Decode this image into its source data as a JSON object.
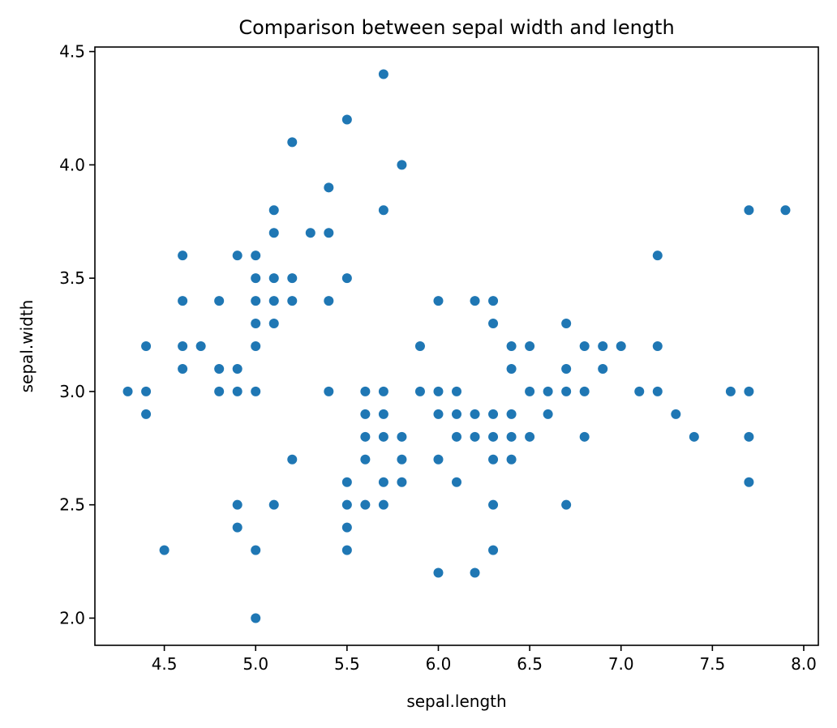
{
  "chart_data": {
    "type": "scatter",
    "title": "Comparison between sepal width and length",
    "xlabel": "sepal.length",
    "ylabel": "sepal.width",
    "xlim": [
      4.12,
      8.08
    ],
    "ylim": [
      1.88,
      4.52
    ],
    "xticks": [
      4.5,
      5.0,
      5.5,
      6.0,
      6.5,
      7.0,
      7.5,
      8.0
    ],
    "xtick_labels": [
      "4.5",
      "5.0",
      "5.5",
      "6.0",
      "6.5",
      "7.0",
      "7.5",
      "8.0"
    ],
    "yticks": [
      2.0,
      2.5,
      3.0,
      3.5,
      4.0,
      4.5
    ],
    "ytick_labels": [
      "2.0",
      "2.5",
      "3.0",
      "3.5",
      "4.0",
      "4.5"
    ],
    "grid": false,
    "marker_color": "#1f77b4",
    "points": [
      [
        4.3,
        3.0
      ],
      [
        4.4,
        3.2
      ],
      [
        4.4,
        3.0
      ],
      [
        4.4,
        2.9
      ],
      [
        4.5,
        2.3
      ],
      [
        4.6,
        3.6
      ],
      [
        4.6,
        3.4
      ],
      [
        4.6,
        3.2
      ],
      [
        4.6,
        3.1
      ],
      [
        4.7,
        3.2
      ],
      [
        4.8,
        3.4
      ],
      [
        4.8,
        3.1
      ],
      [
        4.8,
        3.0
      ],
      [
        4.9,
        3.6
      ],
      [
        4.9,
        3.1
      ],
      [
        4.9,
        3.0
      ],
      [
        4.9,
        2.5
      ],
      [
        4.9,
        2.4
      ],
      [
        5.0,
        3.6
      ],
      [
        5.0,
        3.5
      ],
      [
        5.0,
        3.4
      ],
      [
        5.0,
        3.3
      ],
      [
        5.0,
        3.2
      ],
      [
        5.0,
        3.0
      ],
      [
        5.0,
        2.3
      ],
      [
        5.0,
        2.0
      ],
      [
        5.1,
        3.8
      ],
      [
        5.1,
        3.7
      ],
      [
        5.1,
        3.5
      ],
      [
        5.1,
        3.4
      ],
      [
        5.1,
        3.3
      ],
      [
        5.1,
        2.5
      ],
      [
        5.2,
        4.1
      ],
      [
        5.2,
        3.5
      ],
      [
        5.2,
        3.4
      ],
      [
        5.2,
        2.7
      ],
      [
        5.3,
        3.7
      ],
      [
        5.4,
        3.9
      ],
      [
        5.4,
        3.7
      ],
      [
        5.4,
        3.4
      ],
      [
        5.4,
        3.0
      ],
      [
        5.5,
        4.2
      ],
      [
        5.5,
        3.5
      ],
      [
        5.5,
        2.6
      ],
      [
        5.5,
        2.5
      ],
      [
        5.5,
        2.4
      ],
      [
        5.5,
        2.3
      ],
      [
        5.6,
        3.0
      ],
      [
        5.6,
        2.9
      ],
      [
        5.6,
        2.8
      ],
      [
        5.6,
        2.7
      ],
      [
        5.6,
        2.5
      ],
      [
        5.7,
        4.4
      ],
      [
        5.7,
        3.8
      ],
      [
        5.7,
        3.0
      ],
      [
        5.7,
        2.9
      ],
      [
        5.7,
        2.8
      ],
      [
        5.7,
        2.6
      ],
      [
        5.7,
        2.5
      ],
      [
        5.8,
        4.0
      ],
      [
        5.8,
        2.8
      ],
      [
        5.8,
        2.7
      ],
      [
        5.8,
        2.6
      ],
      [
        5.9,
        3.2
      ],
      [
        5.9,
        3.0
      ],
      [
        6.0,
        3.4
      ],
      [
        6.0,
        3.0
      ],
      [
        6.0,
        2.9
      ],
      [
        6.0,
        2.7
      ],
      [
        6.0,
        2.2
      ],
      [
        6.1,
        3.0
      ],
      [
        6.1,
        2.9
      ],
      [
        6.1,
        2.8
      ],
      [
        6.1,
        2.6
      ],
      [
        6.2,
        3.4
      ],
      [
        6.2,
        2.9
      ],
      [
        6.2,
        2.8
      ],
      [
        6.2,
        2.2
      ],
      [
        6.3,
        3.4
      ],
      [
        6.3,
        3.3
      ],
      [
        6.3,
        2.9
      ],
      [
        6.3,
        2.8
      ],
      [
        6.3,
        2.7
      ],
      [
        6.3,
        2.5
      ],
      [
        6.3,
        2.3
      ],
      [
        6.4,
        3.2
      ],
      [
        6.4,
        3.1
      ],
      [
        6.4,
        2.9
      ],
      [
        6.4,
        2.8
      ],
      [
        6.4,
        2.7
      ],
      [
        6.5,
        3.2
      ],
      [
        6.5,
        3.0
      ],
      [
        6.5,
        2.8
      ],
      [
        6.6,
        3.0
      ],
      [
        6.6,
        2.9
      ],
      [
        6.7,
        3.3
      ],
      [
        6.7,
        3.1
      ],
      [
        6.7,
        3.0
      ],
      [
        6.7,
        2.5
      ],
      [
        6.8,
        3.2
      ],
      [
        6.8,
        3.0
      ],
      [
        6.8,
        2.8
      ],
      [
        6.9,
        3.2
      ],
      [
        6.9,
        3.1
      ],
      [
        7.0,
        3.2
      ],
      [
        7.1,
        3.0
      ],
      [
        7.2,
        3.6
      ],
      [
        7.2,
        3.2
      ],
      [
        7.2,
        3.0
      ],
      [
        7.3,
        2.9
      ],
      [
        7.4,
        2.8
      ],
      [
        7.6,
        3.0
      ],
      [
        7.7,
        3.8
      ],
      [
        7.7,
        3.0
      ],
      [
        7.7,
        2.8
      ],
      [
        7.7,
        2.6
      ],
      [
        7.9,
        3.8
      ]
    ]
  }
}
